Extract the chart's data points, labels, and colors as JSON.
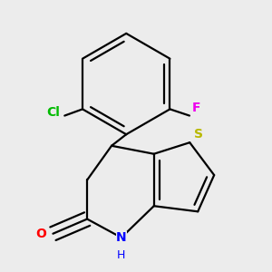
{
  "background_color": "#ececec",
  "bond_color": "#000000",
  "bond_width": 1.6,
  "atom_colors": {
    "S": "#b8b800",
    "N": "#0000ff",
    "O": "#ff0000",
    "Cl": "#00bb00",
    "F": "#ee00ee",
    "C": "#000000",
    "H": "#000000"
  },
  "font_size": 10
}
